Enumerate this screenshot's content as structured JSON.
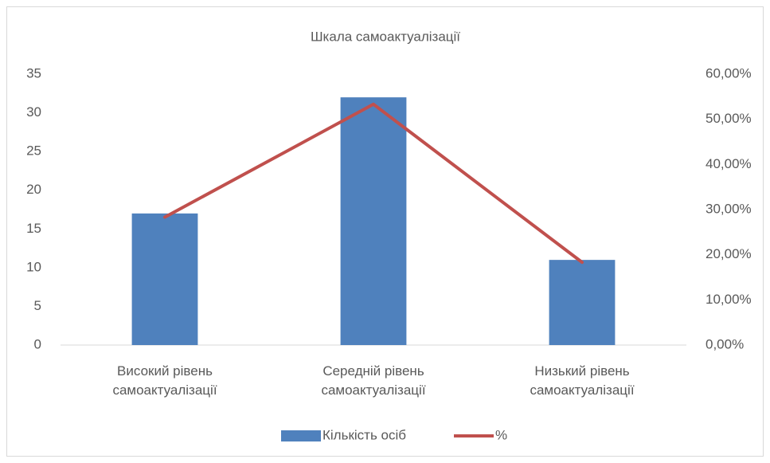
{
  "chart_data": {
    "type": "bar_line",
    "title": "Шкала самоактуалізації",
    "categories": [
      "Високий рівень самоактуалізації",
      "Середній рівень самоактуалізації",
      "Низький рівень самоактуалізації"
    ],
    "series": [
      {
        "name": "Кількість осіб",
        "color": "#4f81bd",
        "type": "bar",
        "values": [
          17,
          32,
          11
        ]
      },
      {
        "name": "%",
        "color": "#c0504d",
        "type": "line",
        "axis": "y2",
        "values": [
          28.33,
          53.33,
          18.33
        ]
      }
    ],
    "ylim": [
      0,
      35
    ],
    "yticks": [
      0,
      5,
      10,
      15,
      20,
      25,
      30,
      35
    ],
    "y2lim": [
      0,
      60
    ],
    "y2ticks": [
      {
        "value": 0,
        "label": "0,00%"
      },
      {
        "value": 10,
        "label": "10,00%"
      },
      {
        "value": 20,
        "label": "20,00%"
      },
      {
        "value": 30,
        "label": "30,00%"
      },
      {
        "value": 40,
        "label": "40,00%"
      },
      {
        "value": 50,
        "label": "50,00%"
      },
      {
        "value": 60,
        "label": "60,00%"
      }
    ],
    "grid": false,
    "legend": "bottom"
  }
}
